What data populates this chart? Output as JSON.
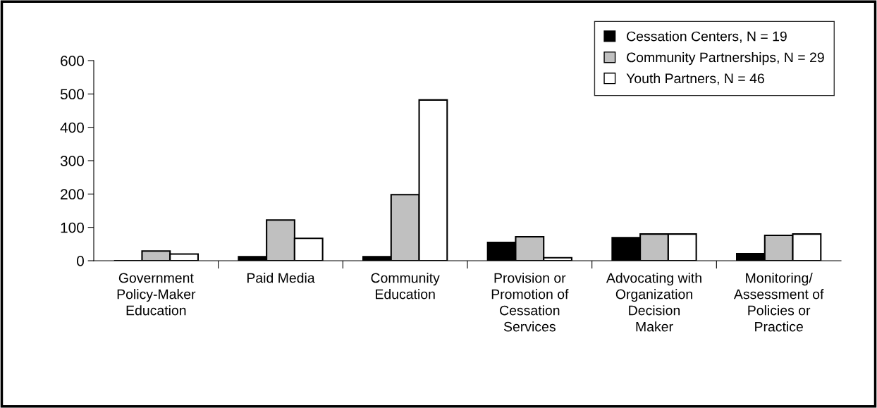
{
  "chart_data": {
    "type": "bar",
    "categories": [
      "Government\nPolicy-Maker\nEducation",
      "Paid Media",
      "Community\nEducation",
      "Provision or\nPromotion of\nCessation\nServices",
      "Advocating with\nOrganization\nDecision\nMaker",
      "Monitoring/\nAssessment of\nPolicies or\nPractice"
    ],
    "series": [
      {
        "name": "Cessation Centers, N = 19",
        "color": "#000000",
        "values": [
          0,
          12,
          12,
          55,
          69,
          21
        ]
      },
      {
        "name": "Community Partnerships, N = 29",
        "color": "#c0c0c0",
        "values": [
          29,
          122,
          198,
          72,
          80,
          76
        ]
      },
      {
        "name": "Youth Partners, N = 46",
        "color": "#ffffff",
        "values": [
          20,
          67,
          482,
          9,
          80,
          80
        ]
      }
    ],
    "ylim": [
      0,
      600
    ],
    "yticks": [
      0,
      100,
      200,
      300,
      400,
      500,
      600
    ],
    "grid": false,
    "legend": "top right"
  }
}
